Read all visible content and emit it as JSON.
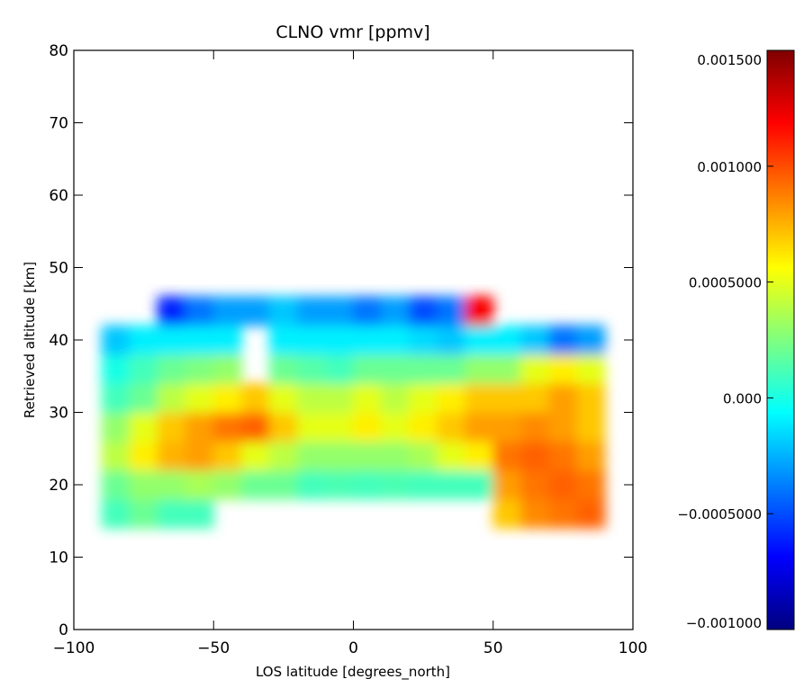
{
  "chart_data": {
    "type": "heatmap",
    "title": "CLNO vmr [ppmv]",
    "xlabel": "LOS latitude [degrees_north]",
    "ylabel": "Retrieved altitude [km]",
    "xlim": [
      -100,
      100
    ],
    "ylim": [
      0,
      80
    ],
    "x_ticks": [
      -100,
      -50,
      0,
      50,
      100
    ],
    "y_ticks": [
      0,
      10,
      20,
      30,
      40,
      50,
      60,
      70,
      80
    ],
    "x_tick_labels": [
      "−100",
      "−50",
      "0",
      "50",
      "100"
    ],
    "y_tick_labels": [
      "0",
      "10",
      "20",
      "30",
      "40",
      "50",
      "60",
      "70",
      "80"
    ],
    "colorbar": {
      "range": [
        -0.001,
        0.0015
      ],
      "ticks": [
        -0.001,
        -0.0005,
        0.0,
        0.0005,
        0.001,
        0.0015
      ],
      "tick_labels": [
        "−0.001000",
        "−0.0005000",
        "0.000",
        "0.0005000",
        "0.001000",
        "0.001500"
      ],
      "colormap": "jet",
      "colors": [
        "#00007f",
        "#0000ff",
        "#007fff",
        "#00ffff",
        "#7fff7f",
        "#ffff00",
        "#ff7f00",
        "#ff0000",
        "#7f0000"
      ]
    },
    "lat_bins": [
      -90,
      -80,
      -70,
      -60,
      -50,
      -40,
      -30,
      -20,
      -10,
      0,
      10,
      20,
      30,
      40,
      50,
      60,
      70,
      80,
      90
    ],
    "alt_bins": [
      14,
      18,
      22,
      26,
      30,
      34,
      38,
      42,
      46
    ],
    "values": [
      [
        0.0001,
        0.0002,
        0.0001,
        0.0001,
        null,
        null,
        null,
        null,
        null,
        null,
        null,
        null,
        null,
        null,
        0.0007,
        0.00085,
        0.0009,
        0.00095
      ],
      [
        0.0002,
        0.0003,
        0.0003,
        0.00035,
        0.0003,
        0.0002,
        0.0002,
        0.0001,
        0.00012,
        0.0001,
        0.00012,
        0.0001,
        0.0001,
        0.0001,
        0.0008,
        0.0009,
        0.00095,
        0.0009
      ],
      [
        0.0004,
        0.0006,
        0.00075,
        0.0008,
        0.0007,
        0.0005,
        0.0004,
        0.0003,
        0.0003,
        0.0003,
        0.0003,
        0.00035,
        0.0005,
        0.0006,
        0.0009,
        0.00095,
        0.0009,
        0.0008
      ],
      [
        0.0003,
        0.0005,
        0.0007,
        0.0008,
        0.0009,
        0.00095,
        0.0007,
        0.0005,
        0.0005,
        0.0006,
        0.0005,
        0.0006,
        0.0007,
        0.0008,
        0.0008,
        0.00085,
        0.0008,
        0.0007
      ],
      [
        0.0001,
        0.0002,
        0.0004,
        0.0005,
        0.0006,
        0.0007,
        0.0005,
        0.0004,
        0.0004,
        0.0005,
        0.0004,
        0.0005,
        0.0006,
        0.0007,
        0.0007,
        0.0007,
        0.0008,
        0.0007
      ],
      [
        0.0,
        0.0001,
        0.0002,
        0.00025,
        0.0003,
        null,
        0.0002,
        0.00015,
        0.0001,
        0.0002,
        0.0002,
        0.0002,
        0.0002,
        0.0003,
        0.0003,
        0.0005,
        0.0006,
        0.0005
      ],
      [
        -0.0002,
        -0.0001,
        -0.0001,
        -0.0001,
        -0.0001,
        null,
        -0.0001,
        -0.0001,
        -0.0001,
        -0.0001,
        -0.0001,
        -0.00015,
        -0.0002,
        -0.0001,
        -0.0001,
        -0.0002,
        -0.0004,
        -0.0003
      ],
      [
        null,
        null,
        -0.0006,
        -0.0004,
        -0.0003,
        -0.0003,
        -0.0002,
        -0.0003,
        -0.0003,
        -0.0004,
        -0.0003,
        -0.0005,
        -0.0004,
        0.0012,
        null,
        null,
        null,
        null
      ]
    ]
  }
}
